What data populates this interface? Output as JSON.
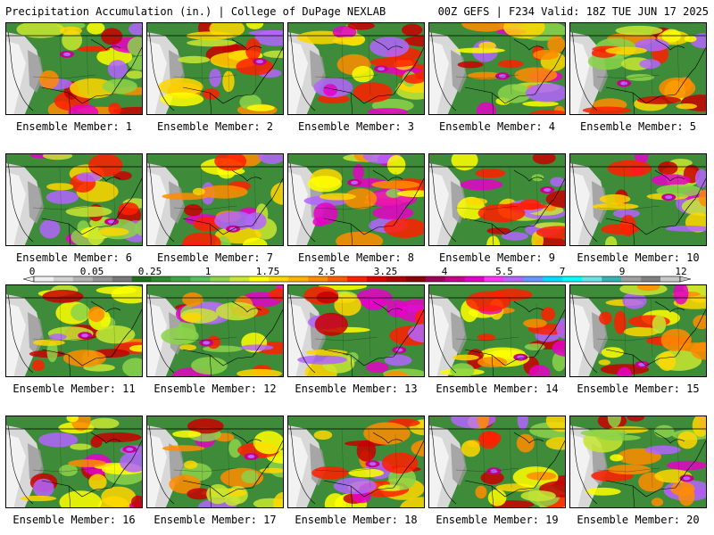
{
  "header": {
    "left_title": "Precipitation Accumulation (in.) | College of DuPage NEXLAB",
    "right_title": "00Z GEFS | F234 Valid: 18Z TUE JUN 17 2025"
  },
  "panels": [
    "Ensemble Member: 1",
    "Ensemble Member: 2",
    "Ensemble Member: 3",
    "Ensemble Member: 4",
    "Ensemble Member: 5",
    "Ensemble Member: 6",
    "Ensemble Member: 7",
    "Ensemble Member: 8",
    "Ensemble Member: 9",
    "Ensemble Member: 10",
    "Ensemble Member: 11",
    "Ensemble Member: 12",
    "Ensemble Member: 13",
    "Ensemble Member: 14",
    "Ensemble Member: 15",
    "Ensemble Member: 16",
    "Ensemble Member: 17",
    "Ensemble Member: 18",
    "Ensemble Member: 19",
    "Ensemble Member: 20"
  ],
  "scale": {
    "tick_labels": [
      "0",
      "0.05",
      "0.25",
      "1",
      "1.75",
      "2.5",
      "3.25",
      "4",
      "5.5",
      "7",
      "9",
      "12"
    ],
    "colors": [
      "#f0f0f0",
      "#d2d2d2",
      "#b4b4b4",
      "#969696",
      "#787878",
      "#1e6e1e",
      "#2e8b2e",
      "#3fa53f",
      "#58c058",
      "#8cd24a",
      "#c8e632",
      "#ffff00",
      "#ffd700",
      "#ffb400",
      "#ff8c00",
      "#ff5a00",
      "#ff1e00",
      "#dc0000",
      "#b40000",
      "#8c0000",
      "#a0005a",
      "#c8008c",
      "#e600c8",
      "#ff32ff",
      "#b464ff",
      "#6496ff",
      "#00dcff",
      "#00ffff",
      "#64e6e6",
      "#32b4b4",
      "#a0a0a0",
      "#808080",
      "#c8c8c8"
    ]
  }
}
